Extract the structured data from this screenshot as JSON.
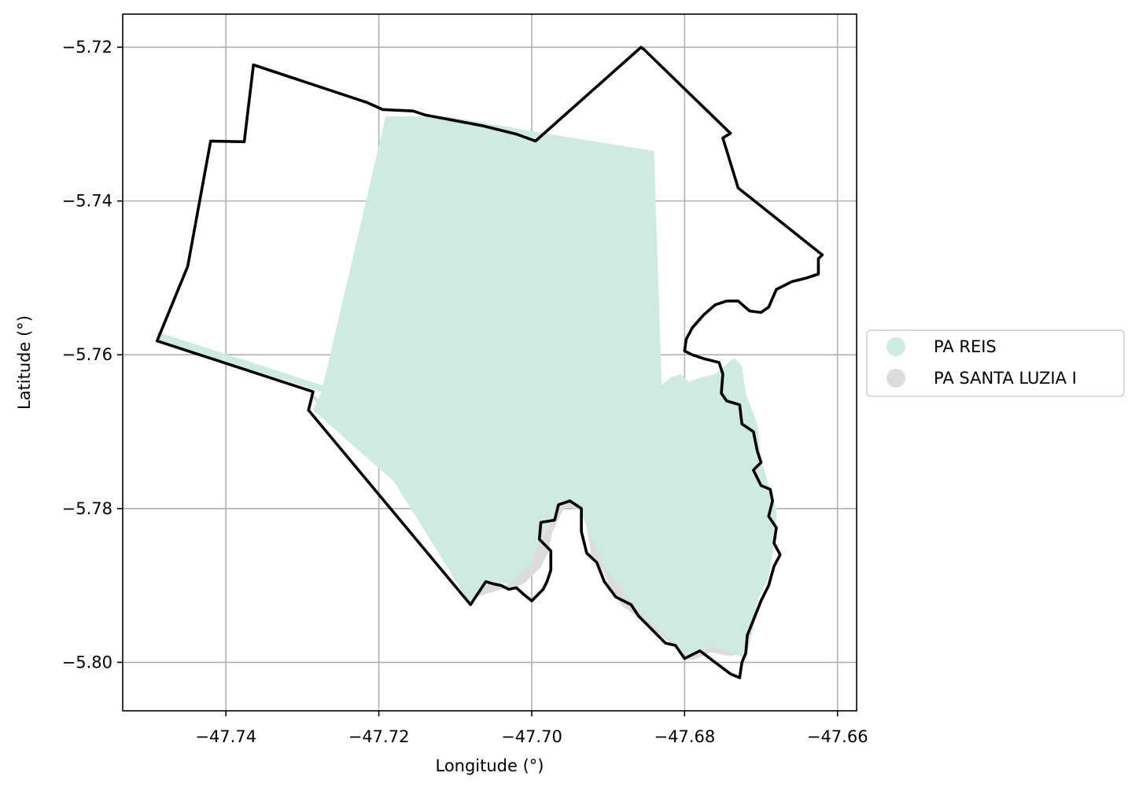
{
  "chart_data": {
    "type": "map",
    "xlabel": "Longitude (°)",
    "ylabel": "Latitude (°)",
    "xlim": [
      -47.7535,
      -47.6575
    ],
    "ylim": [
      -5.8063,
      -5.7157
    ],
    "grid": true,
    "x_ticks": [
      {
        "value": -47.74,
        "label": "−47.74"
      },
      {
        "value": -47.72,
        "label": "−47.72"
      },
      {
        "value": -47.7,
        "label": "−47.70"
      },
      {
        "value": -47.68,
        "label": "−47.68"
      },
      {
        "value": -47.66,
        "label": "−47.66"
      }
    ],
    "y_ticks": [
      {
        "value": -5.72,
        "label": "−5.72"
      },
      {
        "value": -5.74,
        "label": "−5.74"
      },
      {
        "value": -5.76,
        "label": "−5.76"
      },
      {
        "value": -5.78,
        "label": "−5.78"
      },
      {
        "value": -5.8,
        "label": "−5.80"
      }
    ],
    "legend": {
      "placement": "center-right-outside",
      "entries": [
        {
          "name": "PA REIS",
          "color": "#cfebdf"
        },
        {
          "name": "PA SANTA LUZIA I",
          "color": "#dcdcdc"
        }
      ]
    },
    "layers": [
      {
        "name": "PA SANTA LUZIA I",
        "color": "#dcdcdc",
        "coords": [
          [
            -47.7286,
            -5.7654
          ],
          [
            -47.7175,
            -5.7765
          ],
          [
            -47.708,
            -5.792
          ],
          [
            -47.705,
            -5.7895
          ],
          [
            -47.703,
            -5.7905
          ],
          [
            -47.701,
            -5.7895
          ],
          [
            -47.699,
            -5.7875
          ],
          [
            -47.698,
            -5.7855
          ],
          [
            -47.6975,
            -5.783
          ],
          [
            -47.696,
            -5.78
          ],
          [
            -47.6945,
            -5.7785
          ],
          [
            -47.693,
            -5.78
          ],
          [
            -47.6925,
            -5.783
          ],
          [
            -47.692,
            -5.786
          ],
          [
            -47.6905,
            -5.788
          ],
          [
            -47.6895,
            -5.7905
          ],
          [
            -47.688,
            -5.7925
          ],
          [
            -47.686,
            -5.794
          ],
          [
            -47.684,
            -5.7955
          ],
          [
            -47.6815,
            -5.7975
          ],
          [
            -47.679,
            -5.7995
          ],
          [
            -47.6765,
            -5.7985
          ],
          [
            -47.674,
            -5.799
          ],
          [
            -47.672,
            -5.7985
          ],
          [
            -47.677,
            -5.7965
          ],
          [
            -47.681,
            -5.7968
          ],
          [
            -47.684,
            -5.795
          ],
          [
            -47.687,
            -5.792
          ],
          [
            -47.69,
            -5.788
          ],
          [
            -47.692,
            -5.784
          ],
          [
            -47.6935,
            -5.78
          ],
          [
            -47.696,
            -5.7795
          ],
          [
            -47.698,
            -5.783
          ],
          [
            -47.7,
            -5.787
          ],
          [
            -47.703,
            -5.79
          ],
          [
            -47.708,
            -5.7915
          ],
          [
            -47.718,
            -5.776
          ],
          [
            -47.7286,
            -5.7654
          ]
        ]
      },
      {
        "name": "PA REIS",
        "color": "#cfebdf",
        "coords": [
          [
            -47.749,
            -5.757
          ],
          [
            -47.7273,
            -5.764
          ],
          [
            -47.7191,
            -5.729
          ],
          [
            -47.711,
            -5.729
          ],
          [
            -47.6995,
            -5.731
          ],
          [
            -47.684,
            -5.7335
          ],
          [
            -47.683,
            -5.764
          ],
          [
            -47.682,
            -5.763
          ],
          [
            -47.6805,
            -5.7625
          ],
          [
            -47.6795,
            -5.7635
          ],
          [
            -47.678,
            -5.763
          ],
          [
            -47.676,
            -5.7625
          ],
          [
            -47.6745,
            -5.7612
          ],
          [
            -47.6735,
            -5.7604
          ],
          [
            -47.6725,
            -5.7615
          ],
          [
            -47.672,
            -5.765
          ],
          [
            -47.6705,
            -5.769
          ],
          [
            -47.67,
            -5.7735
          ],
          [
            -47.669,
            -5.777
          ],
          [
            -47.668,
            -5.78
          ],
          [
            -47.668,
            -5.783
          ],
          [
            -47.6685,
            -5.786
          ],
          [
            -47.669,
            -5.789
          ],
          [
            -47.6705,
            -5.792
          ],
          [
            -47.671,
            -5.7955
          ],
          [
            -47.672,
            -5.7995
          ],
          [
            -47.6745,
            -5.7985
          ],
          [
            -47.6765,
            -5.798
          ],
          [
            -47.679,
            -5.7995
          ],
          [
            -47.6812,
            -5.7978
          ],
          [
            -47.684,
            -5.7952
          ],
          [
            -47.687,
            -5.7922
          ],
          [
            -47.6905,
            -5.7875
          ],
          [
            -47.6925,
            -5.783
          ],
          [
            -47.694,
            -5.7793
          ],
          [
            -47.6962,
            -5.7795
          ],
          [
            -47.6983,
            -5.783
          ],
          [
            -47.7,
            -5.787
          ],
          [
            -47.703,
            -5.7898
          ],
          [
            -47.7055,
            -5.7895
          ],
          [
            -47.708,
            -5.7925
          ],
          [
            -47.718,
            -5.7765
          ],
          [
            -47.7286,
            -5.7672
          ],
          [
            -47.7275,
            -5.7648
          ],
          [
            -47.749,
            -5.7582
          ]
        ]
      },
      {
        "name": "PA SANTA LUZIA I",
        "color": "#000000",
        "style": "outline",
        "coords": [
          [
            -47.749,
            -5.7582
          ],
          [
            -47.745,
            -5.7485
          ],
          [
            -47.742,
            -5.7322
          ],
          [
            -47.7376,
            -5.7323
          ],
          [
            -47.7364,
            -5.7223
          ],
          [
            -47.7215,
            -5.7272
          ],
          [
            -47.7195,
            -5.7281
          ],
          [
            -47.7155,
            -5.7283
          ],
          [
            -47.714,
            -5.7288
          ],
          [
            -47.7065,
            -5.7302
          ],
          [
            -47.702,
            -5.7313
          ],
          [
            -47.6995,
            -5.7322
          ],
          [
            -47.6857,
            -5.72
          ],
          [
            -47.6853,
            -5.7203
          ],
          [
            -47.674,
            -5.7312
          ],
          [
            -47.675,
            -5.7318
          ],
          [
            -47.673,
            -5.7383
          ],
          [
            -47.662,
            -5.747
          ],
          [
            -47.6625,
            -5.7475
          ],
          [
            -47.6625,
            -5.7495
          ],
          [
            -47.664,
            -5.75
          ],
          [
            -47.666,
            -5.7505
          ],
          [
            -47.668,
            -5.7515
          ],
          [
            -47.669,
            -5.7538
          ],
          [
            -47.67,
            -5.7545
          ],
          [
            -47.6715,
            -5.7543
          ],
          [
            -47.673,
            -5.753
          ],
          [
            -47.6745,
            -5.753
          ],
          [
            -47.676,
            -5.7535
          ],
          [
            -47.6775,
            -5.7548
          ],
          [
            -47.679,
            -5.7565
          ],
          [
            -47.6798,
            -5.758
          ],
          [
            -47.68,
            -5.7595
          ],
          [
            -47.679,
            -5.76
          ],
          [
            -47.6775,
            -5.7605
          ],
          [
            -47.6755,
            -5.761
          ],
          [
            -47.675,
            -5.7625
          ],
          [
            -47.6752,
            -5.765
          ],
          [
            -47.6745,
            -5.766
          ],
          [
            -47.6728,
            -5.7665
          ],
          [
            -47.6725,
            -5.769
          ],
          [
            -47.671,
            -5.77
          ],
          [
            -47.6705,
            -5.7725
          ],
          [
            -47.67,
            -5.774
          ],
          [
            -47.671,
            -5.775
          ],
          [
            -47.67,
            -5.777
          ],
          [
            -47.6688,
            -5.7775
          ],
          [
            -47.6685,
            -5.779
          ],
          [
            -47.669,
            -5.781
          ],
          [
            -47.668,
            -5.7825
          ],
          [
            -47.6683,
            -5.7845
          ],
          [
            -47.6675,
            -5.786
          ],
          [
            -47.6683,
            -5.7875
          ],
          [
            -47.669,
            -5.79
          ],
          [
            -47.67,
            -5.792
          ],
          [
            -47.671,
            -5.7945
          ],
          [
            -47.6718,
            -5.7965
          ],
          [
            -47.672,
            -5.7988
          ],
          [
            -47.6725,
            -5.8
          ],
          [
            -47.6728,
            -5.802
          ],
          [
            -47.674,
            -5.8015
          ],
          [
            -47.676,
            -5.8
          ],
          [
            -47.678,
            -5.7985
          ],
          [
            -47.68,
            -5.7995
          ],
          [
            -47.6812,
            -5.7978
          ],
          [
            -47.6825,
            -5.7975
          ],
          [
            -47.684,
            -5.796
          ],
          [
            -47.686,
            -5.794
          ],
          [
            -47.687,
            -5.7925
          ],
          [
            -47.689,
            -5.7915
          ],
          [
            -47.6905,
            -5.7895
          ],
          [
            -47.6915,
            -5.787
          ],
          [
            -47.6928,
            -5.7858
          ],
          [
            -47.6935,
            -5.783
          ],
          [
            -47.6935,
            -5.78
          ],
          [
            -47.695,
            -5.779
          ],
          [
            -47.6965,
            -5.7795
          ],
          [
            -47.697,
            -5.7815
          ],
          [
            -47.6988,
            -5.7818
          ],
          [
            -47.699,
            -5.784
          ],
          [
            -47.6975,
            -5.7855
          ],
          [
            -47.6975,
            -5.788
          ],
          [
            -47.698,
            -5.7895
          ],
          [
            -47.6985,
            -5.7905
          ],
          [
            -47.7,
            -5.792
          ],
          [
            -47.701,
            -5.7912
          ],
          [
            -47.702,
            -5.7903
          ],
          [
            -47.703,
            -5.7905
          ],
          [
            -47.704,
            -5.79
          ],
          [
            -47.705,
            -5.7898
          ],
          [
            -47.706,
            -5.7895
          ],
          [
            -47.708,
            -5.7925
          ],
          [
            -47.7292,
            -5.7672
          ],
          [
            -47.7286,
            -5.7648
          ],
          [
            -47.749,
            -5.7582
          ]
        ]
      }
    ]
  }
}
